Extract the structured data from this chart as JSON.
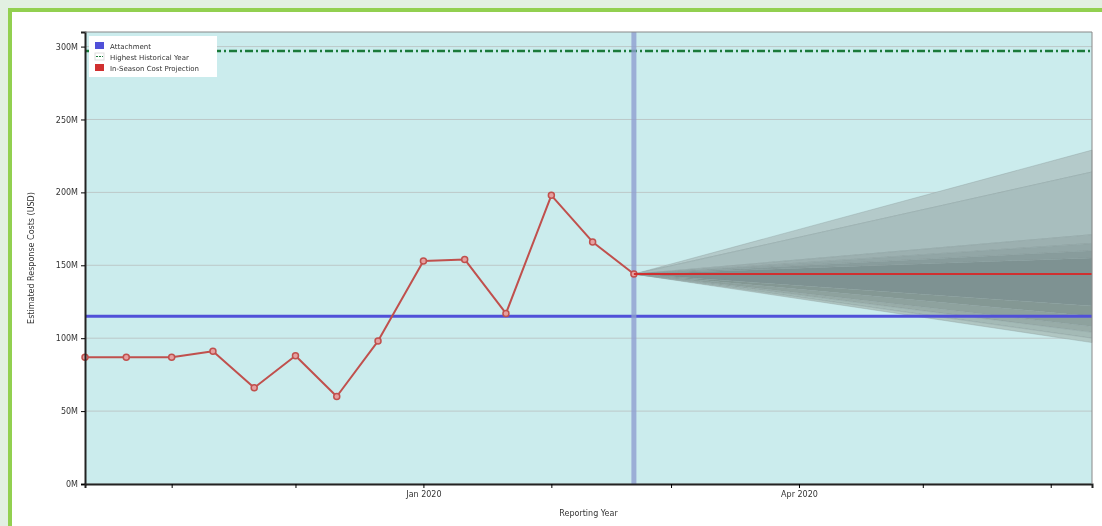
{
  "chart_data": {
    "type": "line",
    "xlabel": "Reporting Year",
    "ylabel": "Estimated Response Costs (USD)",
    "xlim": [
      "2019-10-11",
      "2020-06-11"
    ],
    "ylim": [
      0,
      310
    ],
    "xticks": [
      {
        "value": "2019-11-01",
        "label": null
      },
      {
        "value": "2019-12-01",
        "label": null
      },
      {
        "value": "2020-01-01",
        "label": "Jan 2020"
      },
      {
        "value": "2020-02-01",
        "label": null
      },
      {
        "value": "2020-03-01",
        "label": null
      },
      {
        "value": "2020-04-01",
        "label": "Apr 2020"
      },
      {
        "value": "2020-05-01",
        "label": null
      },
      {
        "value": "2020-06-01",
        "label": null
      }
    ],
    "yticks": [
      {
        "value": 0,
        "label": "0M"
      },
      {
        "value": 50,
        "label": "50M"
      },
      {
        "value": 100,
        "label": "100M"
      },
      {
        "value": 150,
        "label": "150M"
      },
      {
        "value": 200,
        "label": "200M"
      },
      {
        "value": 250,
        "label": "250M"
      },
      {
        "value": 300,
        "label": "300M"
      }
    ],
    "grid": "y",
    "legend": "top left",
    "series": [
      {
        "color": "#c0504d",
        "marker": "circle",
        "x": [
          "2019-10-11",
          "2019-10-21",
          "2019-11-01",
          "2019-11-11",
          "2019-11-21",
          "2019-12-01",
          "2019-12-11",
          "2019-12-21",
          "2020-01-01",
          "2020-01-11",
          "2020-01-21",
          "2020-02-01",
          "2020-02-11",
          "2020-02-21"
        ],
        "values": [
          87,
          87,
          87,
          91,
          66,
          88,
          60,
          98,
          153,
          154,
          117,
          198,
          166,
          144
        ]
      },
      {
        "type": "line",
        "color": "#b4caca",
        "x": [
          "2020-02-21",
          "2020-06-11"
        ],
        "values": [
          null,
          null
        ],
        "lower": [
          144,
          214
        ],
        "upper": [
          144,
          229
        ]
      },
      {
        "type": "line",
        "color": "#a8bebe",
        "x": [
          "2020-02-21",
          "2020-06-11"
        ],
        "values": [
          null,
          null
        ],
        "lower": [
          144,
          171
        ],
        "upper": [
          144,
          214
        ]
      },
      {
        "type": "line",
        "color": "#9cb0b0",
        "x": [
          "2020-02-21",
          "2020-06-11"
        ],
        "values": [
          null,
          null
        ],
        "lower": [
          144,
          165
        ],
        "upper": [
          144,
          171
        ]
      },
      {
        "type": "line",
        "color": "#92a6a6",
        "x": [
          "2020-02-21",
          "2020-06-11"
        ],
        "values": [
          null,
          null
        ],
        "lower": [
          144,
          160
        ],
        "upper": [
          144,
          165
        ]
      },
      {
        "type": "line",
        "color": "#889c9c",
        "x": [
          "2020-02-21",
          "2020-06-11"
        ],
        "values": [
          null,
          null
        ],
        "lower": [
          144,
          155
        ],
        "upper": [
          144,
          160
        ]
      },
      {
        "type": "line",
        "color": "#7e9292",
        "x": [
          "2020-02-21",
          "2020-06-11"
        ],
        "values": [
          null,
          null
        ],
        "lower": [
          144,
          122
        ],
        "upper": [
          144,
          155
        ]
      },
      {
        "type": "line",
        "color": "#849894",
        "x": [
          "2020-02-21",
          "2020-06-11"
        ],
        "values": [
          null,
          null
        ],
        "lower": [
          144,
          115
        ],
        "upper": [
          144,
          122
        ]
      },
      {
        "type": "line",
        "color": "#8ea29e",
        "x": [
          "2020-02-21",
          "2020-06-11"
        ],
        "values": [
          null,
          null
        ],
        "lower": [
          144,
          108
        ],
        "upper": [
          144,
          115
        ]
      },
      {
        "type": "line",
        "color": "#98aca8",
        "x": [
          "2020-02-21",
          "2020-06-11"
        ],
        "values": [
          null,
          null
        ],
        "lower": [
          144,
          104
        ],
        "upper": [
          144,
          108
        ]
      },
      {
        "type": "line",
        "color": "#a4bab6",
        "x": [
          "2020-02-21",
          "2020-06-11"
        ],
        "values": [
          null,
          null
        ],
        "lower": [
          144,
          100
        ],
        "upper": [
          144,
          104
        ]
      },
      {
        "type": "line",
        "color": "#b0c6c2",
        "x": [
          "2020-02-21",
          "2020-06-11"
        ],
        "values": [
          null,
          null
        ],
        "lower": [
          144,
          97
        ],
        "upper": [
          144,
          100
        ]
      },
      {
        "name": "In-Season Cost Projection",
        "color": "#d03030",
        "marker": "none",
        "x": [
          "2020-02-21",
          "2020-06-11"
        ],
        "values": [
          144,
          144
        ]
      }
    ],
    "ref_lines": [
      {
        "axis": "y",
        "value": 115,
        "label": "Attachment",
        "color": "#5050d8",
        "line_style": "solid"
      },
      {
        "axis": "y",
        "value": 297,
        "label": "Highest Historical Year",
        "color": "#1a7a3a",
        "line_style": "dashdot"
      },
      {
        "axis": "x",
        "value": "2020-02-21",
        "label": null,
        "color": "#8f9fd0",
        "line_style": "solid"
      }
    ]
  }
}
